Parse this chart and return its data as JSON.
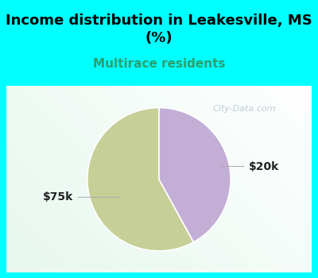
{
  "title": "Income distribution in Leakesville, MS\n(%)",
  "subtitle": "Multirace residents",
  "subtitle_color": "#2d9e6e",
  "title_fontsize": 13,
  "subtitle_fontsize": 11,
  "slices": [
    {
      "label": "$75k",
      "value": 58,
      "color": "#c5cf96"
    },
    {
      "label": "$20k",
      "value": 42,
      "color": "#c3aed6"
    }
  ],
  "startangle": 90,
  "bg_color": "#00ffff",
  "watermark": "City-Data.com",
  "label_fontsize": 10,
  "label_color": "#222222"
}
